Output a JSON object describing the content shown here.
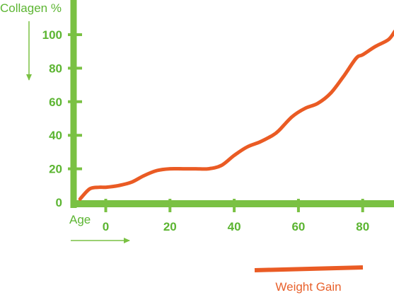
{
  "chart_data": {
    "type": "line",
    "ylabel": "Collagen %",
    "xlabel": "Age",
    "x_ticks": [
      "0",
      "20",
      "40",
      "60",
      "80"
    ],
    "y_ticks": [
      "0",
      "20",
      "40",
      "60",
      "80",
      "100"
    ],
    "xlim": [
      -9,
      90
    ],
    "ylim": [
      0,
      100
    ],
    "series": [
      {
        "name": "Weight Gain",
        "x": [
          -8,
          -5,
          -2,
          0,
          4,
          8,
          12,
          16,
          20,
          24,
          28,
          32,
          36,
          40,
          44,
          48,
          52,
          54,
          58,
          62,
          66,
          70,
          74,
          78,
          80,
          84,
          88,
          90
        ],
        "y": [
          2,
          8,
          9,
          9,
          10,
          12,
          16,
          19,
          20,
          20,
          20,
          20,
          22,
          28,
          33,
          36,
          40,
          43,
          51,
          56,
          59,
          65,
          75,
          86,
          88,
          93,
          97,
          102
        ]
      }
    ],
    "grid": false,
    "legend": "bottom-right",
    "colors": {
      "axis": "#7ac143",
      "series": "#ea5b24",
      "text_green": "#5cb532",
      "legend_text": "#e8612c"
    }
  }
}
